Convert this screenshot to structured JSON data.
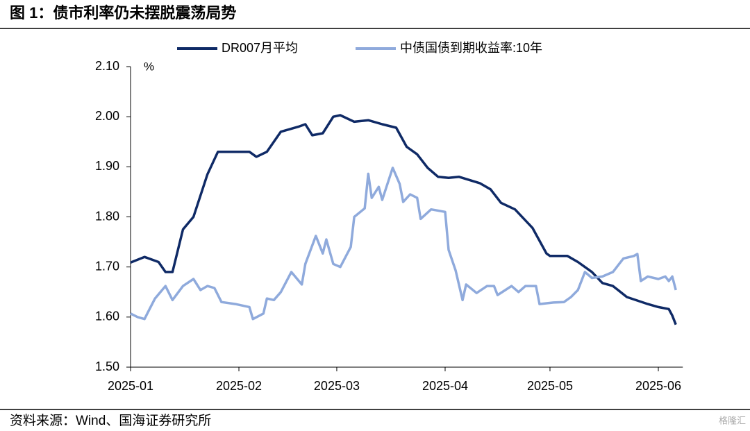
{
  "chart_data": {
    "type": "line",
    "title": "图 1：债市利率仍未摆脱震荡局势",
    "y_unit": "%",
    "source": "资料来源：Wind、国海证券研究所",
    "watermark": "格隆汇",
    "xlim": [
      0,
      158
    ],
    "xticks": [
      {
        "value": 0,
        "label": "2025-01"
      },
      {
        "value": 31,
        "label": "2025-02"
      },
      {
        "value": 59,
        "label": "2025-03"
      },
      {
        "value": 90,
        "label": "2025-04"
      },
      {
        "value": 120,
        "label": "2025-05"
      },
      {
        "value": 151,
        "label": "2025-06"
      }
    ],
    "ylim": [
      1.5,
      2.1
    ],
    "yticks": [
      {
        "value": 1.5,
        "label": "1.50"
      },
      {
        "value": 1.6,
        "label": "1.60"
      },
      {
        "value": 1.7,
        "label": "1.70"
      },
      {
        "value": 1.8,
        "label": "1.80"
      },
      {
        "value": 1.9,
        "label": "1.90"
      },
      {
        "value": 2.0,
        "label": "2.00"
      },
      {
        "value": 2.1,
        "label": "2.10"
      }
    ],
    "legend": "top",
    "series": [
      {
        "name": "DR007月平均",
        "color": "#0f2a66",
        "x": [
          0,
          4,
          8,
          10,
          12,
          15,
          18,
          22,
          25,
          34,
          36,
          39,
          43,
          48,
          50,
          52,
          55,
          58,
          60,
          64,
          68,
          72,
          76,
          79,
          82,
          85,
          88,
          91,
          94,
          100,
          103,
          106,
          110,
          115,
          119,
          120,
          125,
          128,
          132,
          135,
          138,
          142,
          148,
          151,
          154,
          155,
          156
        ],
        "values": [
          1.709,
          1.72,
          1.71,
          1.69,
          1.69,
          1.775,
          1.8,
          1.885,
          1.93,
          1.93,
          1.92,
          1.93,
          1.97,
          1.98,
          1.985,
          1.963,
          1.967,
          2.0,
          2.003,
          1.99,
          1.993,
          1.985,
          1.978,
          1.94,
          1.925,
          1.898,
          1.88,
          1.878,
          1.88,
          1.867,
          1.855,
          1.828,
          1.815,
          1.778,
          1.727,
          1.722,
          1.722,
          1.71,
          1.69,
          1.668,
          1.662,
          1.64,
          1.626,
          1.62,
          1.616,
          1.603,
          1.585
        ]
      },
      {
        "name": "中债国债到期收益率:10年",
        "color": "#8faadc",
        "x": [
          0,
          2,
          4,
          5,
          7,
          10,
          12,
          15,
          18,
          20,
          22,
          24,
          26,
          30,
          34,
          35,
          38,
          39,
          41,
          43,
          46,
          49,
          50,
          53,
          55,
          56,
          58,
          60,
          63,
          64,
          67,
          68,
          69,
          71,
          72,
          75,
          77,
          78,
          80,
          82,
          83,
          86,
          90,
          91,
          93,
          95,
          96,
          99,
          102,
          104,
          105,
          109,
          111,
          113,
          116,
          117,
          121,
          124,
          126,
          128,
          130,
          132,
          135,
          138,
          141,
          144,
          145,
          146,
          148,
          151,
          153,
          154,
          155,
          156
        ],
        "values": [
          1.607,
          1.6,
          1.596,
          1.61,
          1.637,
          1.662,
          1.634,
          1.662,
          1.676,
          1.654,
          1.662,
          1.658,
          1.63,
          1.626,
          1.62,
          1.596,
          1.607,
          1.637,
          1.634,
          1.65,
          1.69,
          1.665,
          1.706,
          1.762,
          1.727,
          1.755,
          1.706,
          1.7,
          1.74,
          1.8,
          1.817,
          1.886,
          1.838,
          1.86,
          1.834,
          1.898,
          1.866,
          1.83,
          1.845,
          1.838,
          1.796,
          1.815,
          1.81,
          1.734,
          1.693,
          1.634,
          1.665,
          1.648,
          1.662,
          1.662,
          1.644,
          1.662,
          1.65,
          1.662,
          1.662,
          1.626,
          1.629,
          1.63,
          1.64,
          1.654,
          1.69,
          1.678,
          1.681,
          1.69,
          1.717,
          1.722,
          1.726,
          1.672,
          1.681,
          1.676,
          1.681,
          1.672,
          1.681,
          1.654
        ]
      }
    ]
  }
}
